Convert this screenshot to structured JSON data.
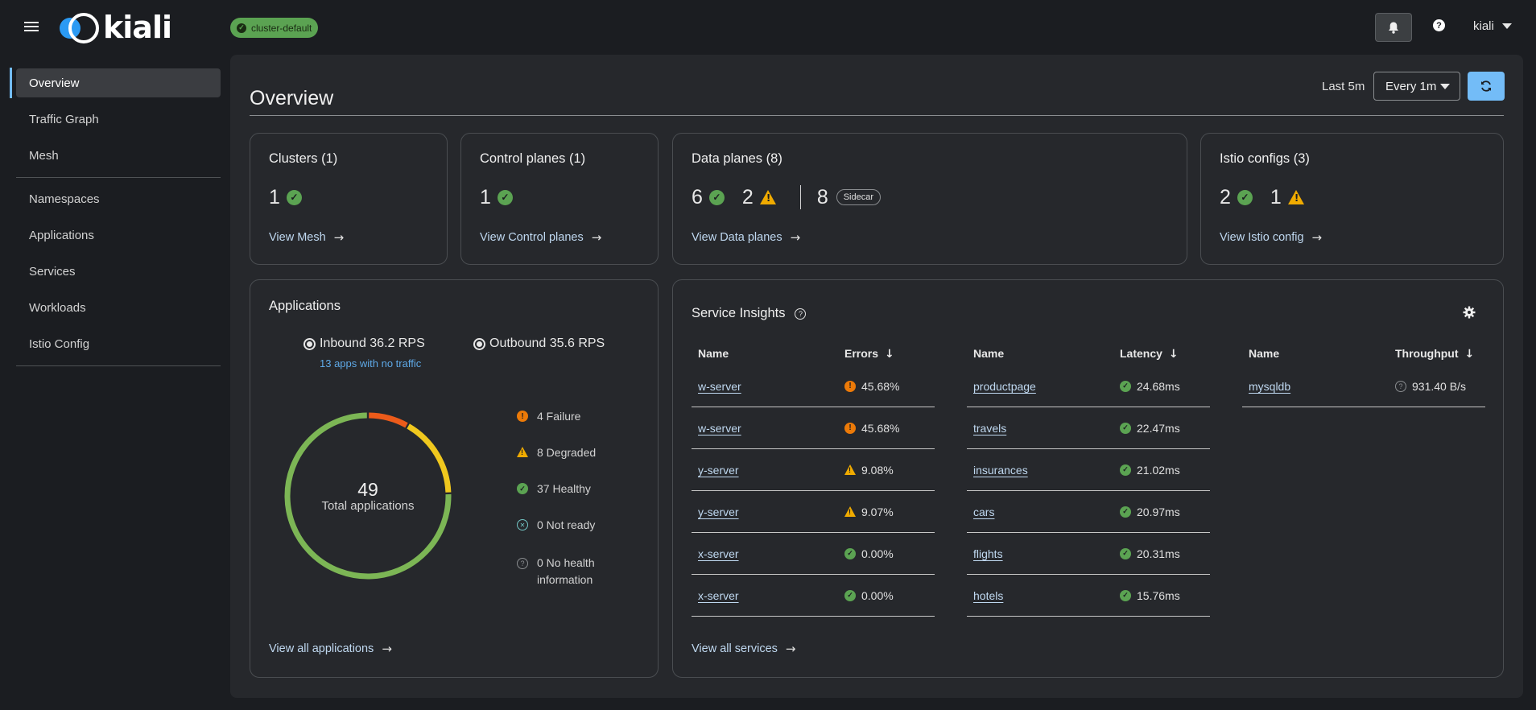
{
  "header": {
    "logo_text": "kiali",
    "cluster_badge": "cluster-default",
    "user": "kiali"
  },
  "sidebar": {
    "items": [
      {
        "label": "Overview"
      },
      {
        "label": "Traffic Graph"
      },
      {
        "label": "Mesh"
      },
      {
        "label": "Namespaces"
      },
      {
        "label": "Applications"
      },
      {
        "label": "Services"
      },
      {
        "label": "Workloads"
      },
      {
        "label": "Istio Config"
      }
    ]
  },
  "main": {
    "title": "Overview",
    "time_range": "Last 5m",
    "refresh_interval": "Every 1m"
  },
  "cards": {
    "clusters": {
      "title": "Clusters (1)",
      "healthy": "1",
      "link": "View Mesh"
    },
    "control_planes": {
      "title": "Control planes (1)",
      "healthy": "1",
      "link": "View Control planes"
    },
    "data_planes": {
      "title": "Data planes (8)",
      "healthy": "6",
      "warning": "2",
      "sidecar_count": "8",
      "sidecar_label": "Sidecar",
      "link": "View Data planes"
    },
    "istio_configs": {
      "title": "Istio configs (3)",
      "healthy": "2",
      "warning": "1",
      "link": "View Istio config"
    }
  },
  "applications": {
    "title": "Applications",
    "inbound": "Inbound 36.2 RPS",
    "outbound": "Outbound 35.6 RPS",
    "no_traffic": "13 apps with no traffic",
    "total": "49",
    "total_label": "Total applications",
    "donut": {
      "failure": 4,
      "degraded": 8,
      "healthy": 37,
      "not_ready": 0,
      "no_health": 0
    },
    "legend": {
      "failure": "4 Failure",
      "degraded": "8 Degraded",
      "healthy": "37 Healthy",
      "not_ready": "0 Not ready",
      "no_health_1": "0 No health",
      "no_health_2": "information"
    },
    "link": "View all applications",
    "colors": {
      "failure": "#ec5b1a",
      "degraded": "#f0c81e",
      "healthy": "#7cb655"
    }
  },
  "service_insights": {
    "title": "Service Insights",
    "errors": {
      "col_name": "Name",
      "col_metric": "Errors",
      "rows": [
        {
          "name": "w-server",
          "value": "45.68%",
          "status": "error"
        },
        {
          "name": "w-server",
          "value": "45.68%",
          "status": "error"
        },
        {
          "name": "y-server",
          "value": "9.08%",
          "status": "warning"
        },
        {
          "name": "y-server",
          "value": "9.07%",
          "status": "warning"
        },
        {
          "name": "x-server",
          "value": "0.00%",
          "status": "ok"
        },
        {
          "name": "x-server",
          "value": "0.00%",
          "status": "ok"
        }
      ]
    },
    "latency": {
      "col_name": "Name",
      "col_metric": "Latency",
      "rows": [
        {
          "name": "productpage",
          "value": "24.68ms",
          "status": "ok"
        },
        {
          "name": "travels",
          "value": "22.47ms",
          "status": "ok"
        },
        {
          "name": "insurances",
          "value": "21.02ms",
          "status": "ok"
        },
        {
          "name": "cars",
          "value": "20.97ms",
          "status": "ok"
        },
        {
          "name": "flights",
          "value": "20.31ms",
          "status": "ok"
        },
        {
          "name": "hotels",
          "value": "15.76ms",
          "status": "ok"
        }
      ]
    },
    "throughput": {
      "col_name": "Name",
      "col_metric": "Throughput",
      "rows": [
        {
          "name": "mysqldb",
          "value": "931.40 B/s",
          "status": "unknown"
        }
      ]
    },
    "link": "View all services"
  }
}
